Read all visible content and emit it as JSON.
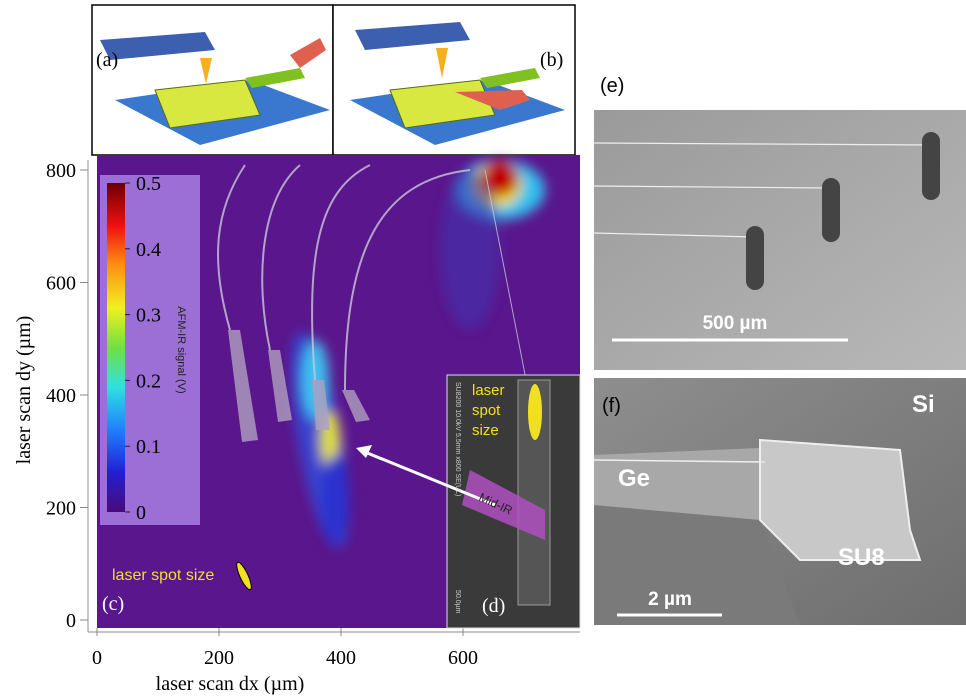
{
  "panels": {
    "a": {
      "label": "(a)"
    },
    "b": {
      "label": "(b)"
    },
    "c": {
      "label": "(c)",
      "x_axis": {
        "title": "laser scan dx (µm)",
        "ticks": [
          0,
          200,
          400,
          600
        ]
      },
      "y_axis": {
        "title": "laser scan dy (µm)",
        "ticks": [
          0,
          200,
          400,
          600,
          800
        ]
      },
      "colorbar": {
        "title": "AFM-IR signal (V)",
        "ticks": [
          0,
          0.1,
          0.2,
          0.3,
          0.4,
          0.5
        ]
      },
      "annotation": "laser spot size"
    },
    "d": {
      "label": "(d)",
      "spot_lines": [
        "laser",
        "spot",
        "size"
      ],
      "beam": "Mid-IR",
      "sem_info": "SU8200 10.0kV 5.5mm x800 SE(UL)",
      "scale": "50.0µm"
    },
    "e": {
      "label": "(e)",
      "scale": "500 µm"
    },
    "f": {
      "label": "(f)",
      "materials": [
        "Ge",
        "Si",
        "SU8"
      ],
      "scale": "2 µm"
    }
  }
}
